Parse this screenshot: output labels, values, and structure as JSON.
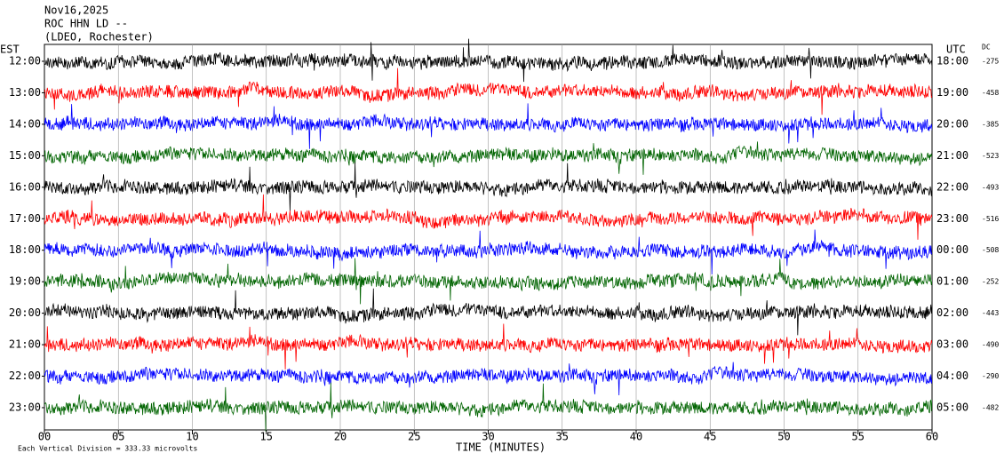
{
  "header": {
    "date": "Nov16,2025",
    "station": "ROC HHN LD --",
    "network": "(LDEO, Rochester)"
  },
  "left_axis": {
    "title": "EST",
    "labels": [
      "12:00",
      "13:00",
      "14:00",
      "15:00",
      "16:00",
      "17:00",
      "18:00",
      "19:00",
      "20:00",
      "21:00",
      "22:00",
      "23:00"
    ]
  },
  "right_axis": {
    "title": "UTC",
    "labels": [
      "18:00",
      "19:00",
      "20:00",
      "21:00",
      "22:00",
      "23:00",
      "00:00",
      "01:00",
      "02:00",
      "03:00",
      "04:00",
      "05:00"
    ]
  },
  "dc": {
    "title": "DC",
    "values": [
      "-275",
      "-458",
      "-385",
      "-523",
      "-493",
      "-516",
      "-508",
      "-252",
      "-443",
      "-490",
      "-290",
      "-482"
    ]
  },
  "x_axis": {
    "labels": [
      "00",
      "05",
      "10",
      "15",
      "20",
      "25",
      "30",
      "35",
      "40",
      "45",
      "50",
      "55",
      "60"
    ],
    "title": "TIME (MINUTES)"
  },
  "footer": "Each Vertical Division =  333.33 microvolts",
  "trace_colors": [
    "#000000",
    "#ff0000",
    "#0000ff",
    "#006400"
  ]
}
